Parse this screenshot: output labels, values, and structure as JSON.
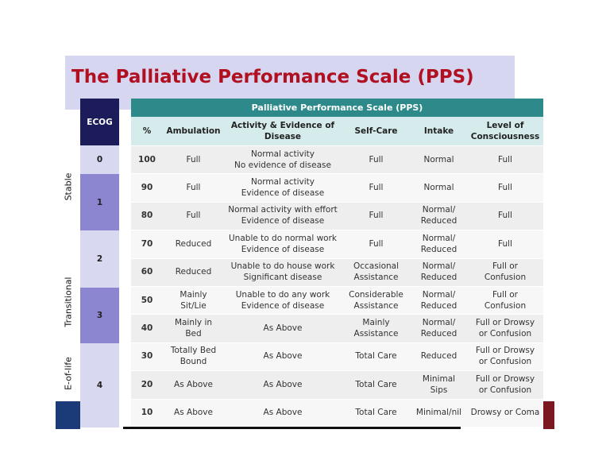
{
  "title": "The Palliative Performance Scale (PPS)",
  "phases": [
    "Stable",
    "Transitional",
    "E-of-life"
  ],
  "ecog": {
    "header": "ECOG",
    "levels": [
      0,
      1,
      2,
      3,
      4
    ]
  },
  "table": {
    "title": "Palliative Performance Scale (PPS)",
    "columns": [
      "%",
      "Ambulation",
      "Activity & Evidence of\nDisease",
      "Self-Care",
      "Intake",
      "Level of\nConsciousness"
    ],
    "rows": [
      [
        100,
        "Full",
        "Normal activity\nNo evidence of disease",
        "Full",
        "Normal",
        "Full"
      ],
      [
        90,
        "Full",
        "Normal activity\nEvidence of disease",
        "Full",
        "Normal",
        "Full"
      ],
      [
        80,
        "Full",
        "Normal activity with effort\nEvidence of disease",
        "Full",
        "Normal/\nReduced",
        "Full"
      ],
      [
        70,
        "Reduced",
        "Unable to do normal work\nEvidence of disease",
        "Full",
        "Normal/\nReduced",
        "Full"
      ],
      [
        60,
        "Reduced",
        "Unable to do house work\nSignificant disease",
        "Occasional\nAssistance",
        "Normal/\nReduced",
        "Full or\nConfusion"
      ],
      [
        50,
        "Mainly\nSit/Lie",
        "Unable to do any work\nEvidence of disease",
        "Considerable\nAssistance",
        "Normal/\nReduced",
        "Full or\nConfusion"
      ],
      [
        40,
        "Mainly in\nBed",
        "As Above",
        "Mainly\nAssistance",
        "Normal/\nReduced",
        "Full or Drowsy\nor Confusion"
      ],
      [
        30,
        "Totally Bed\nBound",
        "As Above",
        "Total Care",
        "Reduced",
        "Full or Drowsy\nor Confusion"
      ],
      [
        20,
        "As Above",
        "As Above",
        "Total Care",
        "Minimal\nSips",
        "Full or Drowsy\nor Confusion"
      ],
      [
        10,
        "As Above",
        "As Above",
        "Total Care",
        "Minimal/nil",
        "Drowsy or Coma"
      ]
    ]
  }
}
